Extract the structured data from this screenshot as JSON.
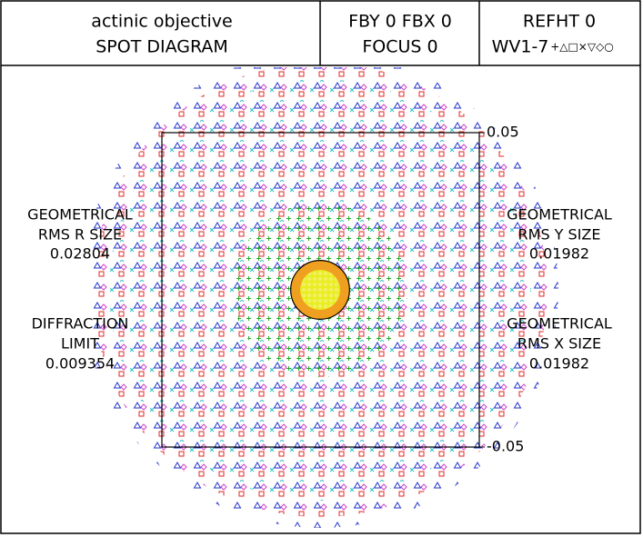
{
  "header": {
    "title": "actinic objective",
    "subtitle": "SPOT DIAGRAM",
    "field": "FBY 0 FBX 0",
    "focus": "FOCUS 0",
    "refht": "REFHT 0",
    "wavelengths": "WV1-7",
    "symbols": "+△□×▽◇○"
  },
  "plot": {
    "ylim": [
      -0.05,
      0.05
    ],
    "yticks": [
      -0.05,
      0.05
    ]
  },
  "stats": {
    "rms_r": {
      "label": [
        "GEOMETRICAL",
        "RMS R SIZE"
      ],
      "value": 0.02804
    },
    "diffraction": {
      "label": [
        "DIFFRACTION",
        "LIMIT"
      ],
      "value": 0.009354
    },
    "rms_y": {
      "label": [
        "GEOMETRICAL",
        "RMS Y SIZE"
      ],
      "value": 0.01982
    },
    "rms_x": {
      "label": [
        "GEOMETRICAL",
        "RMS X SIZE"
      ],
      "value": 0.01982
    }
  }
}
